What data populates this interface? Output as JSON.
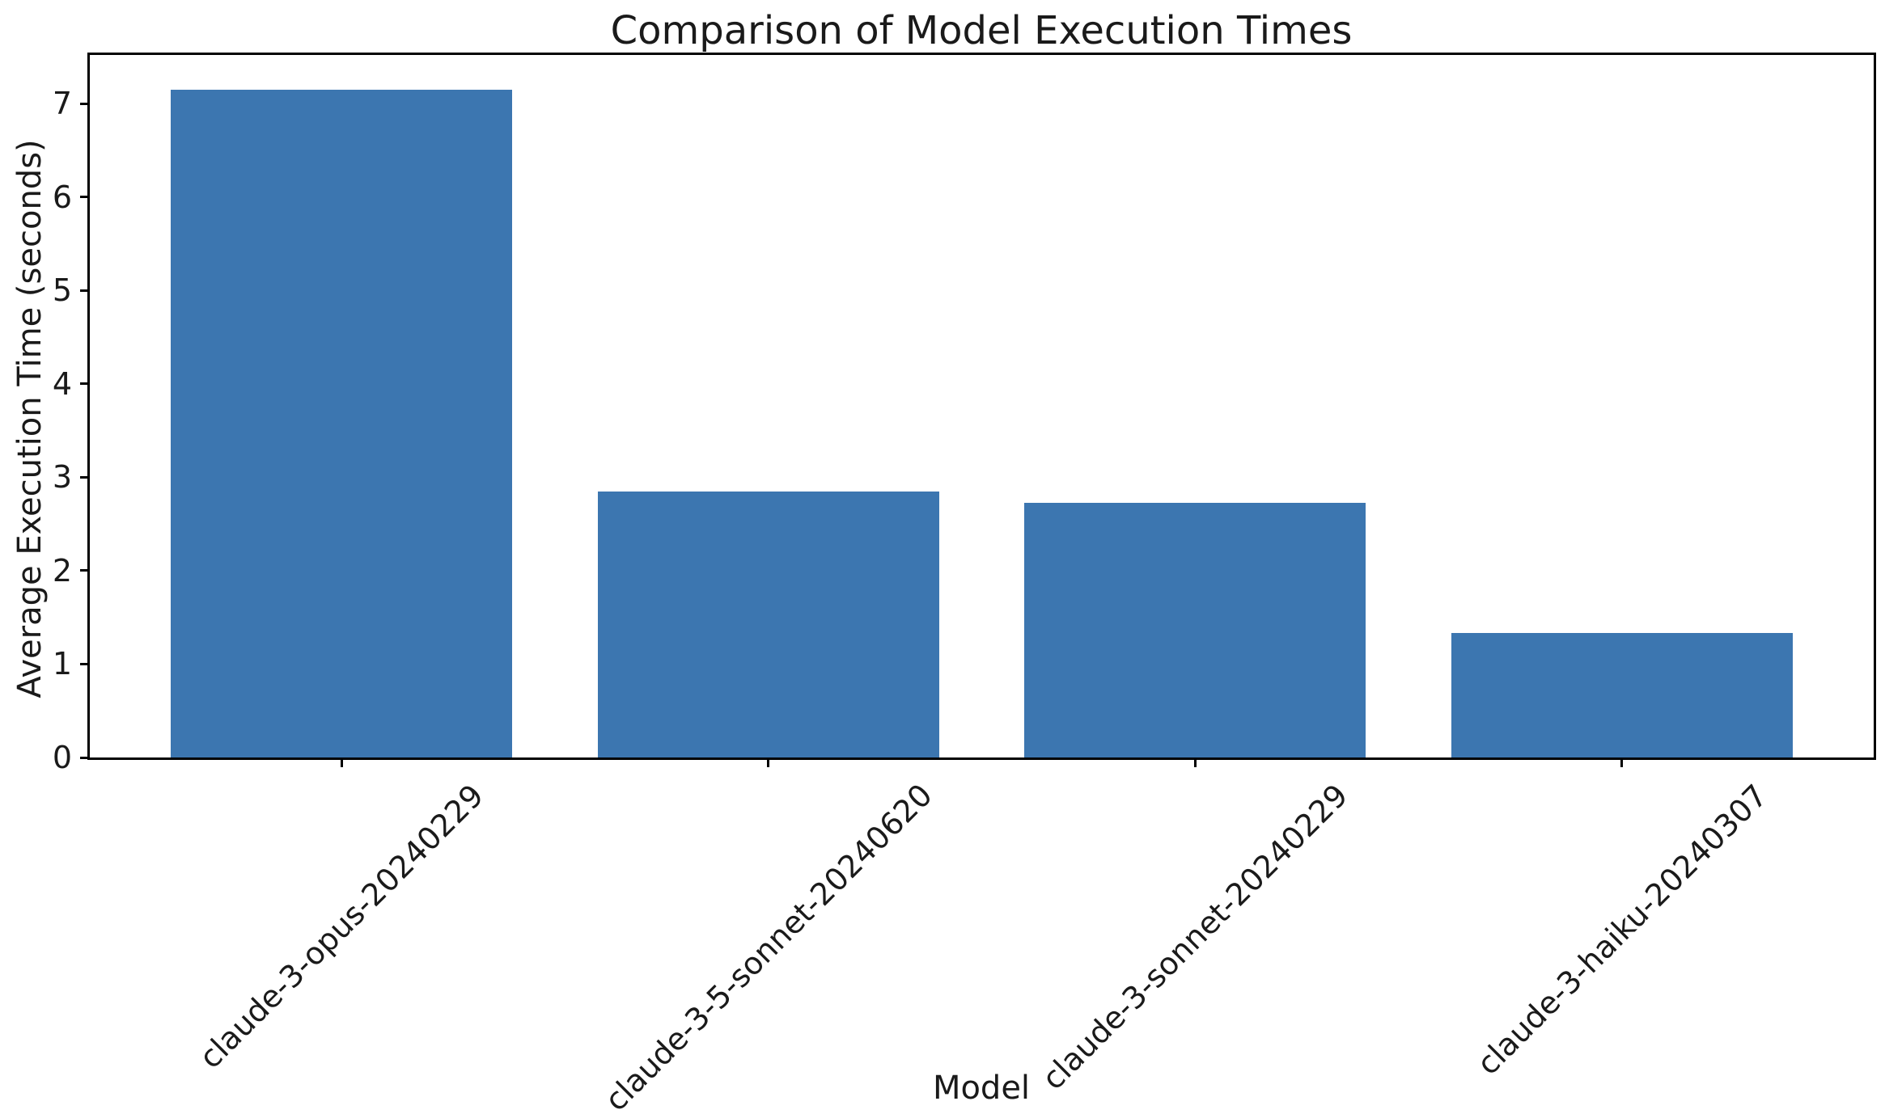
{
  "chart_data": {
    "type": "bar",
    "title": "Comparison of Model Execution Times",
    "xlabel": "Model",
    "ylabel": "Average Execution Time (seconds)",
    "categories": [
      "claude-3-opus-20240229",
      "claude-3-5-sonnet-20240620",
      "claude-3-sonnet-20240229",
      "claude-3-haiku-20240307"
    ],
    "values": [
      7.15,
      2.85,
      2.73,
      1.33
    ],
    "yticks": [
      0,
      1,
      2,
      3,
      4,
      5,
      6,
      7
    ],
    "ylim": [
      0,
      7.52
    ],
    "bar_width_fraction": 0.8,
    "xtick_rotation_deg": 45,
    "bar_color": "#3c76b0",
    "axis_color": "#000000",
    "text_color": "#1a1a1a",
    "background_color": "#ffffff",
    "grid": false,
    "legend": null
  }
}
